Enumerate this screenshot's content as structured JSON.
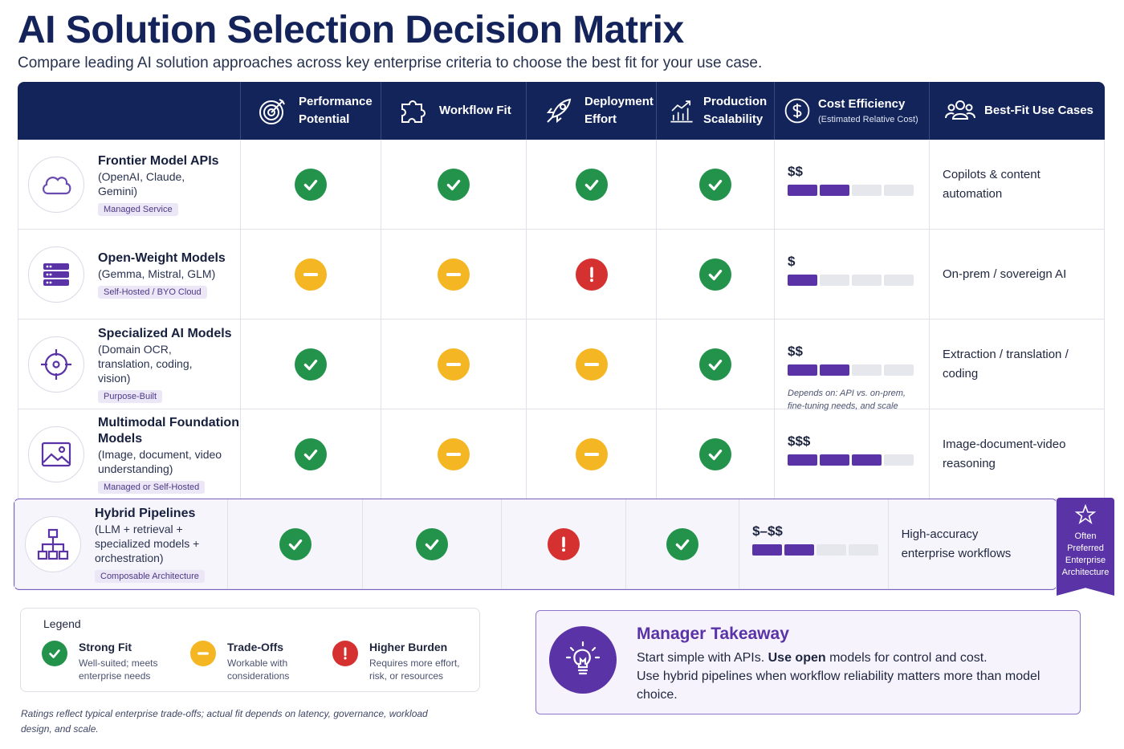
{
  "title": "AI Solution Selection Decision Matrix",
  "subtitle": "Compare leading AI solution approaches across key enterprise criteria to choose the best fit for your use case.",
  "headers": {
    "performance": "Performance Potential",
    "workflow": "Workflow Fit",
    "deployment": "Deployment Effort",
    "scalability": "Production Scalability",
    "cost": "Cost Efficiency",
    "cost_sub": "(Estimated Relative Cost)",
    "usecases": "Best-Fit Use Cases"
  },
  "header_icons": [
    "target-icon",
    "puzzle-icon",
    "rocket-icon",
    "growth-chart-icon",
    "dollar-icon",
    "people-icon"
  ],
  "rows": [
    {
      "name": "Frontier Model APIs",
      "desc": "(OpenAI, Claude, Gemini)",
      "tag": "Managed Service",
      "icon": "cloud-icon",
      "ratings": [
        "strong",
        "strong",
        "strong",
        "strong"
      ],
      "cost": "$$",
      "cost_level": 2,
      "cost_note": "",
      "usecase": "Copilots & content automation"
    },
    {
      "name": "Open-Weight Models",
      "desc": "(Gemma, Mistral, GLM)",
      "tag": "Self-Hosted / BYO Cloud",
      "icon": "server-icon",
      "ratings": [
        "tradeoff",
        "tradeoff",
        "burden",
        "strong"
      ],
      "cost": "$",
      "cost_level": 1,
      "cost_note": "",
      "usecase": "On-prem / sovereign AI"
    },
    {
      "name": "Specialized AI Models",
      "desc": "(Domain OCR, translation, coding, vision)",
      "tag": "Purpose-Built",
      "icon": "crosshair-icon",
      "ratings": [
        "strong",
        "tradeoff",
        "tradeoff",
        "strong"
      ],
      "cost": "$$",
      "cost_level": 2,
      "cost_note": "Depends on: API vs. on-prem, fine-tuning needs, and scale",
      "usecase": "Extraction / translation / coding"
    },
    {
      "name": "Multimodal Foundation Models",
      "desc": "(Image, document, video understanding)",
      "tag": "Managed or Self-Hosted",
      "icon": "image-icon",
      "ratings": [
        "strong",
        "tradeoff",
        "tradeoff",
        "strong"
      ],
      "cost": "$$$",
      "cost_level": 3,
      "cost_note": "",
      "usecase": "Image-document-video reasoning"
    },
    {
      "name": "Hybrid Pipelines",
      "desc": "(LLM + retrieval + specialized models + orchestration)",
      "tag": "Composable Architecture",
      "icon": "hierarchy-icon",
      "ratings": [
        "strong",
        "strong",
        "burden",
        "strong"
      ],
      "cost": "$–$$",
      "cost_level": 2,
      "cost_note": "",
      "usecase": "High-accuracy enterprise workflows"
    }
  ],
  "ribbon": "Often Preferred Enterprise Architecture",
  "legend": {
    "title": "Legend",
    "items": [
      {
        "name": "Strong Fit",
        "desc": "Well-suited; meets enterprise needs",
        "type": "strong"
      },
      {
        "name": "Trade-Offs",
        "desc": "Workable with considerations",
        "type": "tradeoff"
      },
      {
        "name": "Higher Burden",
        "desc": "Requires more effort, risk, or resources",
        "type": "burden"
      }
    ]
  },
  "footnote": "Ratings reflect typical enterprise trade-offs; actual fit depends on latency, governance, workload design, and scale.",
  "takeaway": {
    "title": "Manager Takeaway",
    "line1_a": "Start simple with ",
    "line1_b": "APIs.",
    "line1_c": " ",
    "line1_d": "Use open",
    "line1_e": " models for control and cost.",
    "line2": "Use hybrid pipelines when workflow reliability matters more than model choice."
  },
  "colors": {
    "navy": "#13245a",
    "purple": "#5a33a6",
    "strong": "#23924a",
    "tradeoff": "#f5b624",
    "burden": "#d63131"
  }
}
